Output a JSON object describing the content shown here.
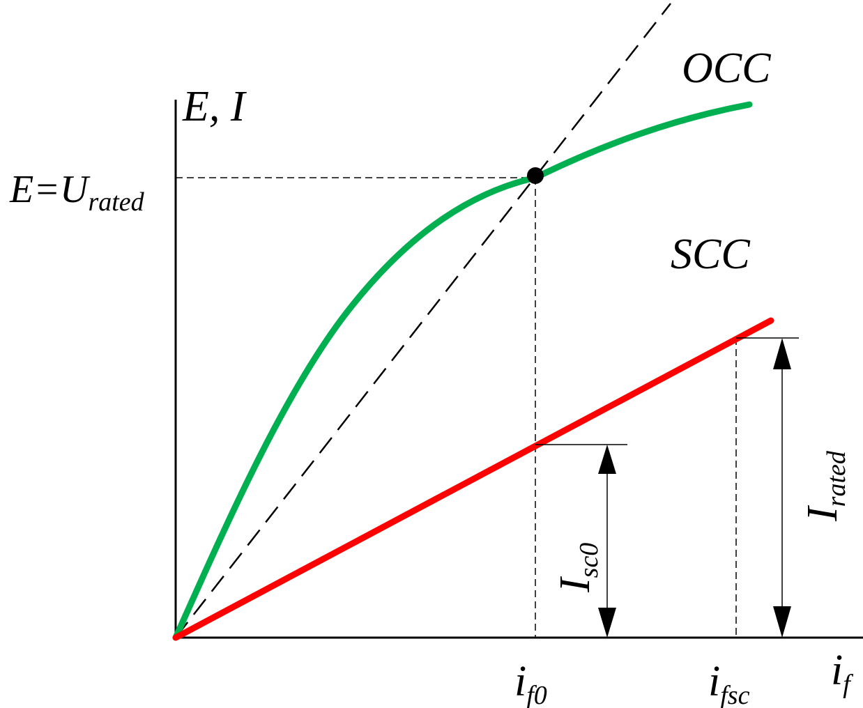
{
  "colors": {
    "occ": "#00b050",
    "scc": "#ff0000",
    "axis": "#000000",
    "guides": "#000000"
  },
  "y_axis_label": "E, I",
  "x_axis": {
    "symbol": "i",
    "subscript": "f"
  },
  "y_marker": {
    "main": "E=U",
    "subscript": "rated"
  },
  "x_markers": [
    {
      "symbol": "i",
      "subscript": "f0"
    },
    {
      "symbol": "i",
      "subscript": "fsc"
    }
  ],
  "curves": {
    "occ_label": "OCC",
    "scc_label": "SCC"
  },
  "dimensions": {
    "isc0": {
      "symbol": "I",
      "subscript": "sc0"
    },
    "irated": {
      "symbol": "I",
      "subscript": "rated"
    }
  },
  "operating_point_icon": "filled-circle-marker",
  "arrow_icon": "double-headed-arrow-icon"
}
